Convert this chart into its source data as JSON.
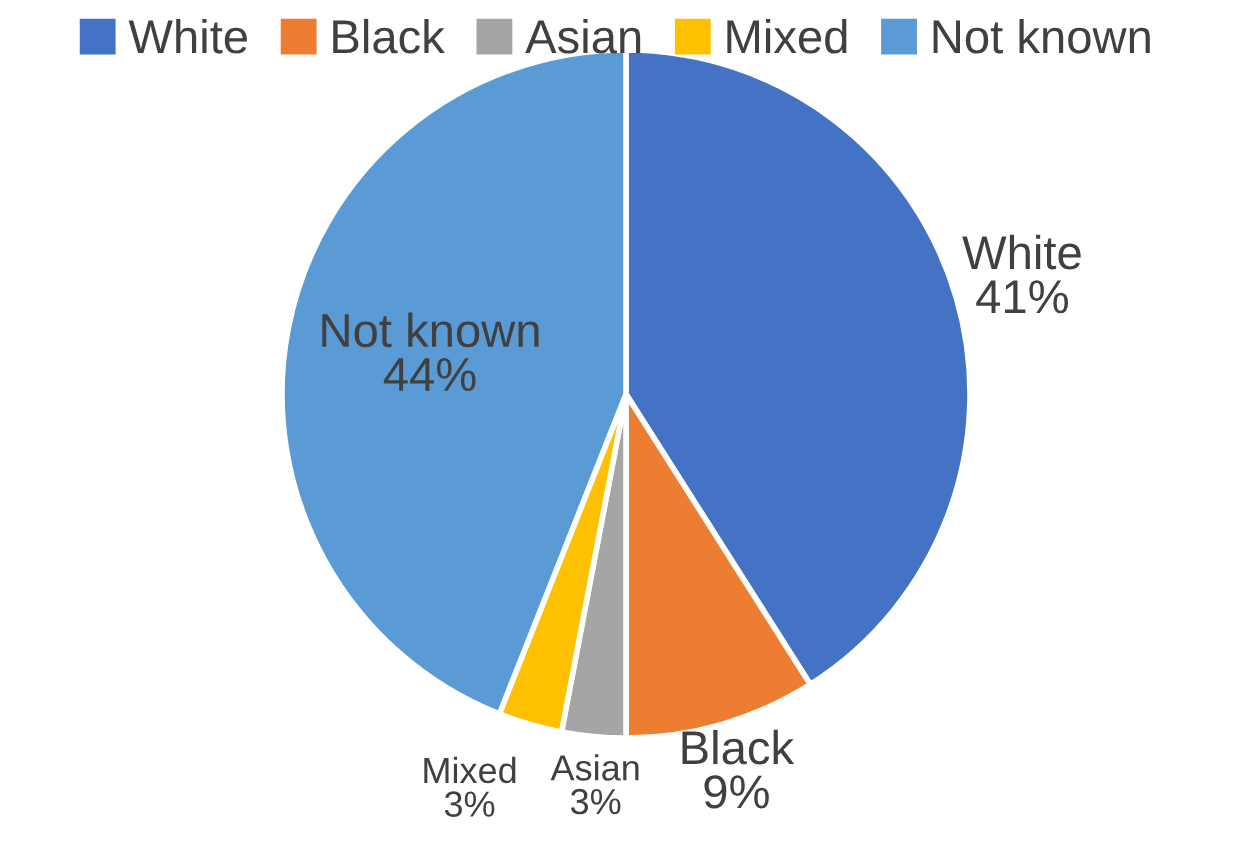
{
  "chart_data": {
    "type": "pie",
    "categories": [
      "White",
      "Black",
      "Asian",
      "Mixed",
      "Not known"
    ],
    "values": [
      41,
      9,
      3,
      3,
      44
    ],
    "colors": [
      "#4472c4",
      "#ed7d31",
      "#a5a5a5",
      "#ffc000",
      "#5b9bd5"
    ],
    "value_labels": [
      "41%",
      "9%",
      "3%",
      "3%",
      "44%"
    ],
    "legend": "top"
  }
}
